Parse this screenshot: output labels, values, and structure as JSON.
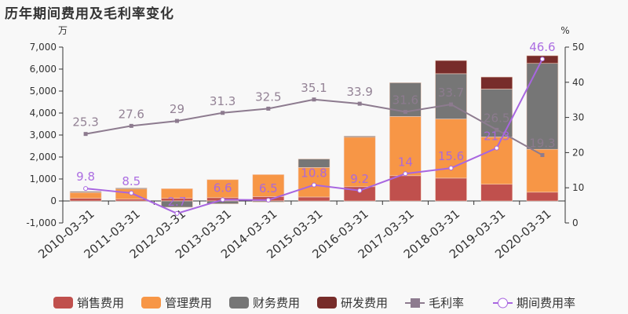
{
  "chart_data": {
    "type": "bar+line",
    "title": "历年期间费用及毛利率变化",
    "y_left_unit": "万",
    "y_right_unit": "%",
    "y_left_lim": [
      -1000,
      7000
    ],
    "y_left_ticks": [
      "-1,000",
      "0",
      "1,000",
      "2,000",
      "3,000",
      "4,000",
      "5,000",
      "6,000",
      "7,000"
    ],
    "y_right_lim": [
      0,
      50
    ],
    "y_right_ticks": [
      "0",
      "10",
      "20",
      "30",
      "40",
      "50"
    ],
    "categories": [
      "2010-03-31",
      "2011-03-31",
      "2012-03-31",
      "2013-03-31",
      "2014-03-31",
      "2015-03-31",
      "2016-03-31",
      "2017-03-31",
      "2018-03-31",
      "2019-03-31",
      "2020-03-31"
    ],
    "bar_series": [
      {
        "name": "销售费用",
        "color": "#c0504d",
        "values": [
          120,
          80,
          120,
          150,
          200,
          180,
          650,
          1150,
          1040,
          760,
          400
        ]
      },
      {
        "name": "管理费用",
        "color": "#f79646",
        "values": [
          260,
          465,
          440,
          820,
          1000,
          1340,
          2250,
          2690,
          2690,
          2150,
          1950
        ]
      },
      {
        "name": "财务费用",
        "color": "#767676",
        "values": [
          50,
          45,
          -285,
          -130,
          -50,
          390,
          50,
          1540,
          2060,
          2180,
          3910
        ]
      },
      {
        "name": "研发费用",
        "color": "#772c2a",
        "values": [
          0,
          0,
          0,
          0,
          0,
          0,
          0,
          0,
          600,
          550,
          350
        ]
      }
    ],
    "line_series": [
      {
        "name": "毛利率",
        "color": "#8d7b8f",
        "values": [
          25.3,
          27.6,
          29,
          31.3,
          32.5,
          35.1,
          33.9,
          31.6,
          33.7,
          26.5,
          19.3
        ],
        "labels": [
          "25.3",
          "27.6",
          "29",
          "31.3",
          "32.5",
          "35.1",
          "33.9",
          "31.6",
          "33.7",
          "26.5",
          "19.3"
        ]
      },
      {
        "name": "期间费用率",
        "color": "#a866e0",
        "values": [
          9.8,
          8.5,
          2.7,
          6.6,
          6.5,
          10.8,
          9.2,
          14,
          15.6,
          21.3,
          46.6
        ],
        "labels": [
          "9.8",
          "8.5",
          "2.7",
          "6.6",
          "6.5",
          "10.8",
          "9.2",
          "14",
          "15.6",
          "21.3",
          "46.6"
        ]
      }
    ],
    "legend_position": "bottom",
    "grid": false
  }
}
